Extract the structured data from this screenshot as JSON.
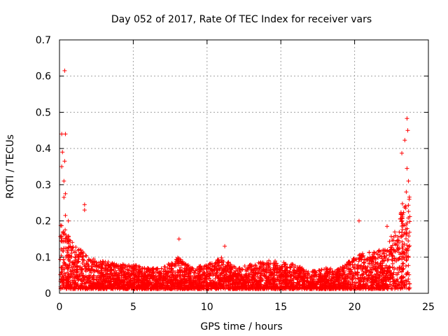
{
  "chart_data": {
    "type": "scatter",
    "title": "Day 052 of 2017, Rate Of TEC Index for receiver vars",
    "xlabel": "GPS time / hours",
    "ylabel": "ROTI / TECUs",
    "xlim": [
      0,
      25
    ],
    "ylim": [
      0,
      0.7
    ],
    "xticks": [
      0,
      5,
      10,
      15,
      20,
      25
    ],
    "yticks": [
      0,
      0.1,
      0.2,
      0.3,
      0.4,
      0.5,
      0.6,
      0.7
    ],
    "xtick_labels": [
      "0",
      "5",
      "10",
      "15",
      "20",
      "25"
    ],
    "ytick_labels": [
      "0",
      "0.1",
      "0.2",
      "0.3",
      "0.4",
      "0.5",
      "0.6",
      "0.7"
    ],
    "grid": true,
    "marker": "+",
    "color": "#ff0000",
    "series": [
      {
        "name": "receiver vars",
        "notable_points": [
          {
            "x": 0.35,
            "y": 0.615
          },
          {
            "x": 0.15,
            "y": 0.44
          },
          {
            "x": 0.4,
            "y": 0.44
          },
          {
            "x": 0.2,
            "y": 0.39
          },
          {
            "x": 0.35,
            "y": 0.365
          },
          {
            "x": 0.15,
            "y": 0.35
          },
          {
            "x": 0.3,
            "y": 0.31
          },
          {
            "x": 0.4,
            "y": 0.275
          },
          {
            "x": 0.3,
            "y": 0.265
          },
          {
            "x": 0.4,
            "y": 0.215
          },
          {
            "x": 0.6,
            "y": 0.2
          },
          {
            "x": 1.7,
            "y": 0.245
          },
          {
            "x": 1.7,
            "y": 0.23
          },
          {
            "x": 8.1,
            "y": 0.15
          },
          {
            "x": 11.2,
            "y": 0.13
          },
          {
            "x": 20.3,
            "y": 0.2
          },
          {
            "x": 22.2,
            "y": 0.185
          },
          {
            "x": 23.2,
            "y": 0.387
          },
          {
            "x": 23.4,
            "y": 0.423
          },
          {
            "x": 23.55,
            "y": 0.483
          },
          {
            "x": 23.6,
            "y": 0.45
          },
          {
            "x": 23.55,
            "y": 0.345
          },
          {
            "x": 23.65,
            "y": 0.31
          },
          {
            "x": 23.5,
            "y": 0.28
          },
          {
            "x": 23.7,
            "y": 0.26
          }
        ],
        "envelope": {
          "hours": [
            0,
            0.5,
            1,
            1.5,
            2,
            3,
            4,
            5,
            6,
            7,
            8,
            9,
            10,
            11,
            12,
            13,
            14,
            15,
            16,
            17,
            18,
            19,
            20,
            21,
            22,
            22.5,
            23,
            23.5,
            23.8
          ],
          "typical_max": [
            0.2,
            0.17,
            0.13,
            0.12,
            0.1,
            0.09,
            0.08,
            0.08,
            0.07,
            0.07,
            0.1,
            0.07,
            0.08,
            0.1,
            0.07,
            0.08,
            0.09,
            0.09,
            0.08,
            0.06,
            0.07,
            0.07,
            0.1,
            0.12,
            0.12,
            0.16,
            0.2,
            0.3,
            0.26
          ]
        }
      }
    ]
  }
}
